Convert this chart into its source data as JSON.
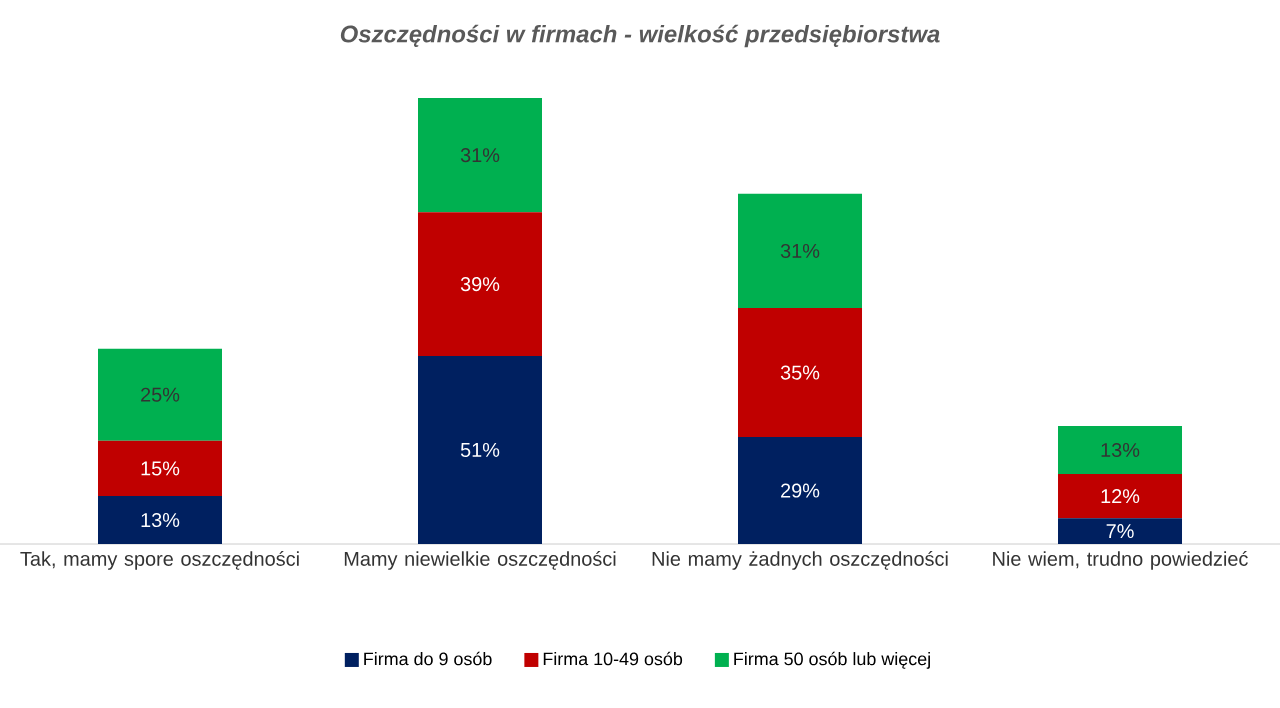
{
  "chart_data": {
    "type": "bar",
    "stacked": true,
    "title": "*Oszczędności w firmach - wielkość przedsiębiorstwa*",
    "categories": [
      "Tak, mamy spore oszczędności",
      "Mamy niewielkie oszczędności",
      "Nie mamy żadnych oszczędności",
      "Nie wiem, trudno powiedzieć"
    ],
    "series": [
      {
        "name": "Firma do 9 osób",
        "color": "#002060",
        "values": [
          13,
          51,
          29,
          7
        ],
        "value_labels": [
          "13%",
          "51%",
          "29%",
          "7%"
        ]
      },
      {
        "name": "Firma 10-49 osób",
        "color": "#c00000",
        "values": [
          15,
          39,
          35,
          12
        ],
        "value_labels": [
          "15%",
          "39%",
          "35%",
          "12%"
        ]
      },
      {
        "name": "Firma 50 osób lub więcej",
        "color": "#00b050",
        "values": [
          25,
          31,
          31,
          13
        ],
        "value_labels": [
          "25%",
          "31%",
          "31%",
          "13%"
        ]
      }
    ],
    "legend": "bottom"
  }
}
